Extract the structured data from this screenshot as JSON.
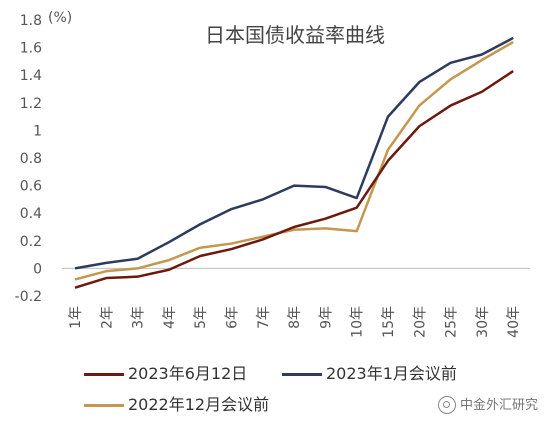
{
  "chart_data": {
    "type": "line",
    "title": "日本国债收益率曲线",
    "ylabel": "(%)",
    "xlabel": "",
    "categories": [
      "1年",
      "2年",
      "3年",
      "4年",
      "5年",
      "6年",
      "7年",
      "8年",
      "9年",
      "10年",
      "15年",
      "20年",
      "25年",
      "30年",
      "40年"
    ],
    "ylim": [
      -0.2,
      1.8
    ],
    "yticks": [
      "1.8",
      "1.6",
      "1.4",
      "1.2",
      "1",
      "0.8",
      "0.6",
      "0.4",
      "0.2",
      "0",
      "-0.2"
    ],
    "grid": false,
    "legend_position": "bottom",
    "series": [
      {
        "name": "2023年6月12日",
        "color": "#6b1a0d",
        "values": [
          -0.14,
          -0.07,
          -0.06,
          -0.01,
          0.09,
          0.14,
          0.21,
          0.3,
          0.36,
          0.44,
          0.78,
          1.03,
          1.18,
          1.28,
          1.43
        ]
      },
      {
        "name": "2023年1月会议前",
        "color": "#2e3b5e",
        "values": [
          0.0,
          0.04,
          0.07,
          0.19,
          0.32,
          0.43,
          0.5,
          0.6,
          0.59,
          0.51,
          1.1,
          1.35,
          1.49,
          1.55,
          1.67
        ]
      },
      {
        "name": "2022年12月会议前",
        "color": "#c4974f",
        "values": [
          -0.08,
          -0.02,
          0.0,
          0.06,
          0.15,
          0.18,
          0.23,
          0.28,
          0.29,
          0.27,
          0.86,
          1.18,
          1.37,
          1.51,
          1.64
        ]
      }
    ]
  },
  "watermark": "中金外汇研究"
}
